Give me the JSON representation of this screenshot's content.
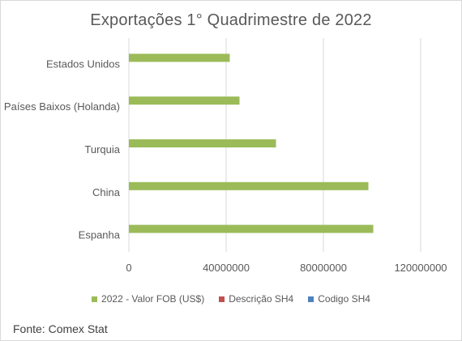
{
  "chart_data": {
    "type": "bar",
    "orientation": "horizontal",
    "title": "Exportações 1° Quadrimestre de 2022",
    "categories": [
      "Estados Unidos",
      "Países Baixos (Holanda)",
      "Turquia",
      "China",
      "Espanha"
    ],
    "series": [
      {
        "name": "2022 - Valor FOB (US$)",
        "color": "#9bbb59",
        "values": [
          41500000,
          45500000,
          60500000,
          98500000,
          100500000
        ]
      },
      {
        "name": "Descrição SH4",
        "color": "#c0504d",
        "values": [
          0,
          0,
          0,
          0,
          0
        ]
      },
      {
        "name": "Codigo SH4",
        "color": "#4f81bd",
        "values": [
          0,
          0,
          0,
          0,
          0
        ]
      }
    ],
    "xlim": [
      0,
      120000000
    ],
    "xticks": [
      "0",
      "40000000",
      "80000000",
      "120000000"
    ],
    "grid": true,
    "legend_position": "bottom"
  },
  "footer": {
    "note": "Fonte: Comex Stat"
  }
}
